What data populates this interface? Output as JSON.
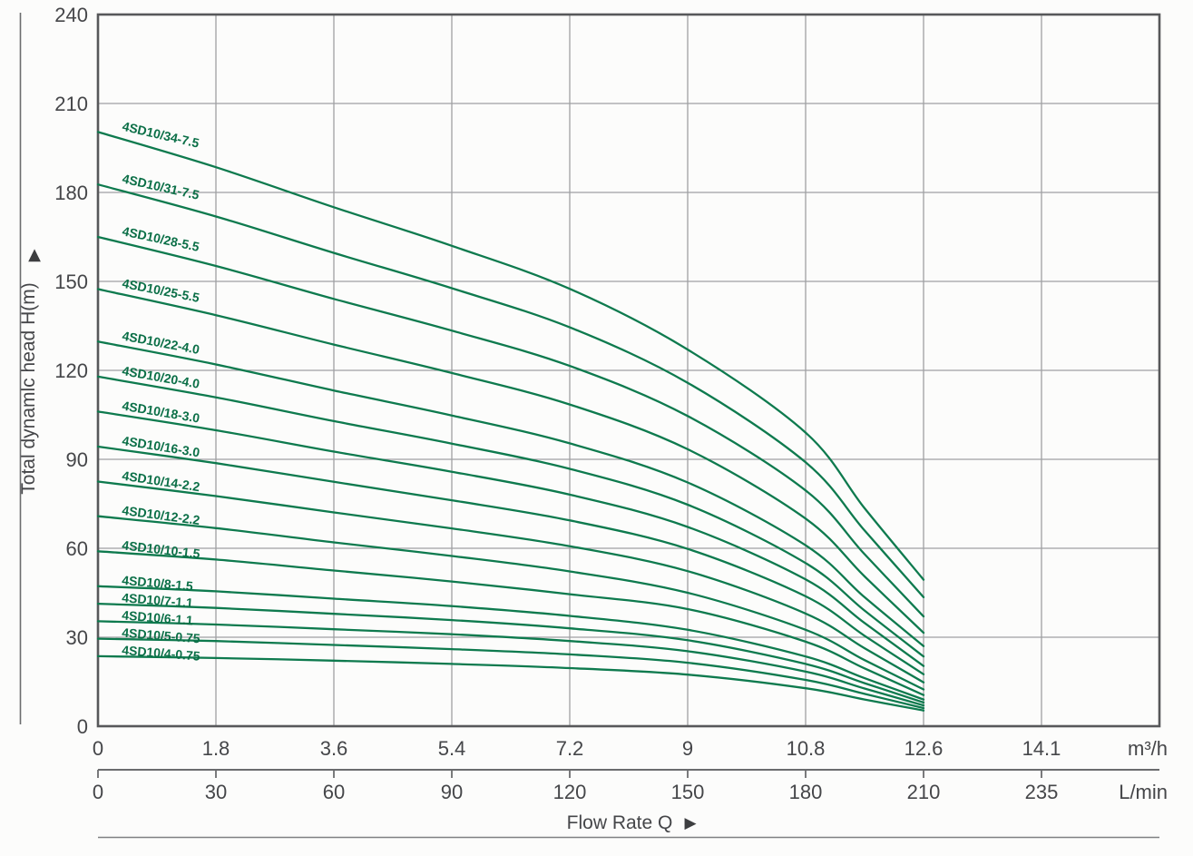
{
  "icons": {
    "y_axis_up_arrow": "▲",
    "flow_right_arrow": "▶"
  },
  "chart_data": {
    "type": "line",
    "title": "",
    "xlabel": "Flow Rate Q",
    "y_axis": {
      "label": "Total dynamlc head H(m)",
      "min": 0,
      "max": 240,
      "tick_labels": [
        "240",
        "210",
        "180",
        "150",
        "120",
        "90",
        "60",
        "30",
        "0"
      ]
    },
    "x_axis_top": {
      "unit": "m³/h",
      "tick_labels": [
        "0",
        "1.8",
        "3.6",
        "5.4",
        "7.2",
        "9",
        "10.8",
        "12.6",
        "14.1"
      ]
    },
    "x_axis_bottom": {
      "unit": "L/min",
      "tick_labels": [
        "0",
        "30",
        "60",
        "90",
        "120",
        "150",
        "180",
        "210",
        "235"
      ]
    },
    "grid": "on",
    "q_samples_m3h": [
      0,
      1.8,
      3.6,
      5.4,
      7.2,
      9,
      10.8,
      11.7,
      12.6
    ],
    "series": [
      {
        "name": "4SD10/34-7.5",
        "heads_m": [
          200.4,
          188.5,
          175.0,
          162.0,
          147.5,
          127.0,
          99.0,
          73.5,
          49.4
        ]
      },
      {
        "name": "4SD10/31-7.5",
        "heads_m": [
          182.7,
          171.9,
          159.6,
          147.7,
          134.5,
          115.8,
          89.0,
          66.0,
          43.5
        ]
      },
      {
        "name": "4SD10/28-5.5",
        "heads_m": [
          165.0,
          155.2,
          144.1,
          133.4,
          121.5,
          104.6,
          79.5,
          58.0,
          37.0
        ]
      },
      {
        "name": "4SD10/25-5.5",
        "heads_m": [
          147.4,
          138.6,
          128.7,
          119.1,
          108.5,
          93.4,
          70.0,
          50.5,
          31.5
        ]
      },
      {
        "name": "4SD10/22-4.0",
        "heads_m": [
          129.7,
          122.0,
          113.2,
          104.8,
          95.4,
          82.2,
          61.0,
          43.5,
          27.0
        ]
      },
      {
        "name": "4SD10/20-4.0",
        "heads_m": [
          117.9,
          110.9,
          102.9,
          95.3,
          86.8,
          74.7,
          55.0,
          39.0,
          23.5
        ]
      },
      {
        "name": "4SD10/18-3.0",
        "heads_m": [
          106.1,
          99.8,
          92.6,
          85.8,
          78.1,
          67.2,
          49.5,
          34.8,
          20.3
        ]
      },
      {
        "name": "4SD10/16-3.0",
        "heads_m": [
          94.3,
          88.7,
          82.4,
          76.2,
          69.4,
          59.8,
          43.8,
          30.5,
          17.5
        ]
      },
      {
        "name": "4SD10/14-2.2",
        "heads_m": [
          82.5,
          77.6,
          72.1,
          66.7,
          60.7,
          52.3,
          38.0,
          26.3,
          14.8
        ]
      },
      {
        "name": "4SD10/12-2.2",
        "heads_m": [
          70.8,
          66.8,
          62.0,
          57.4,
          52.2,
          45.0,
          32.5,
          22.3,
          12.4
        ]
      },
      {
        "name": "4SD10/10-1.5",
        "heads_m": [
          59.0,
          56.2,
          52.5,
          48.8,
          44.5,
          39.5,
          28.5,
          19.5,
          10.5
        ]
      },
      {
        "name": "4SD10/8-1.5",
        "heads_m": [
          47.2,
          45.5,
          43.0,
          40.5,
          37.2,
          32.5,
          23.5,
          16.2,
          9.0
        ]
      },
      {
        "name": "4SD10/7-1.1",
        "heads_m": [
          41.3,
          39.9,
          37.9,
          35.8,
          33.0,
          29.0,
          21.0,
          14.5,
          8.0
        ]
      },
      {
        "name": "4SD10/6-1.1",
        "heads_m": [
          35.4,
          34.3,
          32.7,
          31.0,
          28.7,
          25.3,
          18.4,
          12.7,
          7.0
        ]
      },
      {
        "name": "4SD10/5-0.75",
        "heads_m": [
          29.5,
          28.7,
          27.4,
          26.0,
          24.2,
          21.4,
          15.6,
          10.9,
          6.1
        ]
      },
      {
        "name": "4SD10/4-0.75",
        "heads_m": [
          23.6,
          23.0,
          22.1,
          21.0,
          19.6,
          17.4,
          12.8,
          9.0,
          5.3
        ]
      }
    ],
    "colors": {
      "curve": "#0e7a4e",
      "curve_label": "#0b6f47",
      "grid": "#9fa0a2",
      "border": "#57585a",
      "axis_line": "#6b6c6e",
      "rule_line": "#7f8082",
      "text": "#454649"
    }
  }
}
